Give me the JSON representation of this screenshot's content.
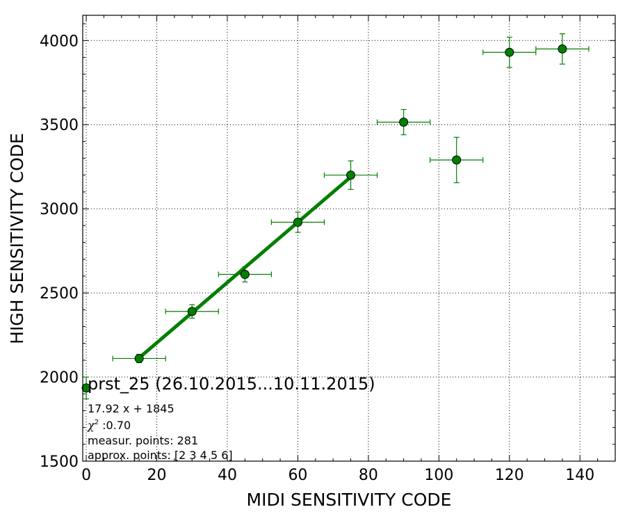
{
  "chart_data": {
    "type": "scatter",
    "title": "prst_25 (26.10.2015...10.11.2015)",
    "xlabel": "MIDI SENSITIVITY CODE",
    "ylabel": "HIGH SENSITIVITY CODE",
    "xlim": [
      -1,
      150
    ],
    "ylim": [
      1500,
      4150
    ],
    "x_ticks": [
      0,
      20,
      40,
      60,
      80,
      100,
      120,
      140
    ],
    "y_ticks": [
      1500,
      2000,
      2500,
      3000,
      3500,
      4000
    ],
    "grid": true,
    "colors": {
      "marker": "#007f00",
      "line": "#007f00",
      "errorbar": "#007f00"
    },
    "series": [
      {
        "x": [
          0,
          15,
          30,
          45,
          60,
          75,
          90,
          105,
          120,
          135
        ],
        "y": [
          1935,
          2110,
          2390,
          2610,
          2920,
          3200,
          3515,
          3290,
          3930,
          3950
        ],
        "x_err": [
          0,
          7.5,
          7.5,
          7.5,
          7.5,
          7.5,
          7.5,
          7.5,
          7.5,
          7.5
        ],
        "y_err": [
          65,
          25,
          40,
          45,
          60,
          85,
          75,
          135,
          90,
          90
        ]
      }
    ],
    "fit_line": {
      "slope": 17.92,
      "intercept": 1845,
      "x_range": [
        15,
        75
      ]
    },
    "annotations": {
      "equation": "17.92 x + 1845",
      "chi2_symbol": "χ",
      "chi2_exponent": "2",
      "chi2_value": " :0.70",
      "measur_points": "measur. points: 281",
      "approx_points": "approx. points: [2 3 4 5 6]"
    }
  }
}
